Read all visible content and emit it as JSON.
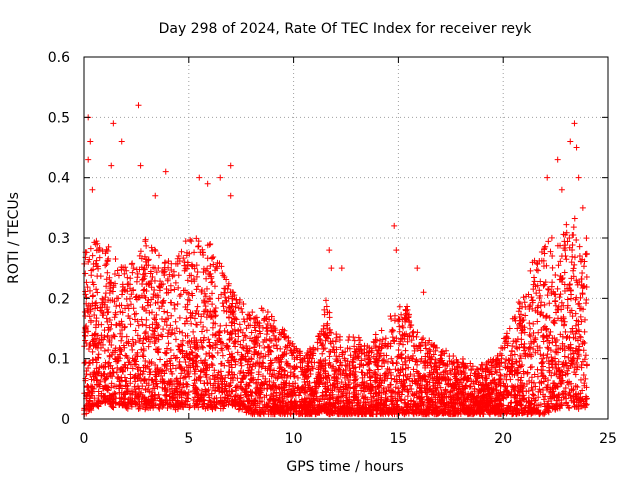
{
  "chart_data": {
    "type": "scatter",
    "title": "Day 298 of 2024, Rate Of TEC Index for receiver reyk",
    "xlabel": "GPS time / hours",
    "ylabel": "ROTI / TECUs",
    "xlim": [
      0,
      25
    ],
    "ylim": [
      0,
      0.6
    ],
    "x_ticks": [
      "0",
      "5",
      "10",
      "15",
      "20",
      "25"
    ],
    "y_ticks": [
      "0",
      "0.1",
      "0.2",
      "0.3",
      "0.4",
      "0.5",
      "0.6"
    ],
    "grid": true,
    "legend": "none",
    "marker": "plus",
    "series_color": "#ff0000",
    "envelope": {
      "hours": [
        0,
        0.5,
        1,
        1.5,
        2,
        2.5,
        3,
        3.5,
        4,
        4.5,
        5,
        5.5,
        6,
        6.5,
        7,
        7.5,
        8,
        8.5,
        9,
        9.5,
        10,
        10.5,
        11,
        11.5,
        12,
        12.5,
        13,
        13.5,
        14,
        14.5,
        15,
        15.5,
        16,
        16.5,
        17,
        17.5,
        18,
        18.5,
        19,
        19.5,
        20,
        20.5,
        21,
        21.5,
        22,
        22.5,
        23,
        23.5,
        24
      ],
      "typical_max": [
        0.29,
        0.3,
        0.3,
        0.27,
        0.25,
        0.28,
        0.3,
        0.28,
        0.26,
        0.29,
        0.3,
        0.3,
        0.29,
        0.27,
        0.22,
        0.2,
        0.18,
        0.19,
        0.17,
        0.15,
        0.13,
        0.11,
        0.12,
        0.2,
        0.15,
        0.13,
        0.14,
        0.12,
        0.15,
        0.16,
        0.2,
        0.18,
        0.14,
        0.13,
        0.12,
        0.11,
        0.1,
        0.09,
        0.09,
        0.1,
        0.13,
        0.17,
        0.22,
        0.27,
        0.3,
        0.3,
        0.32,
        0.33,
        0.3
      ],
      "typical_min": [
        0.01,
        0.02,
        0.03,
        0.02,
        0.02,
        0.02,
        0.02,
        0.02,
        0.02,
        0.02,
        0.02,
        0.02,
        0.02,
        0.02,
        0.02,
        0.02,
        0.01,
        0.01,
        0.01,
        0.01,
        0.01,
        0.01,
        0.01,
        0.01,
        0.01,
        0.01,
        0.01,
        0.01,
        0.01,
        0.01,
        0.01,
        0.01,
        0.01,
        0.01,
        0.01,
        0.01,
        0.01,
        0.01,
        0.01,
        0.01,
        0.01,
        0.01,
        0.01,
        0.01,
        0.01,
        0.02,
        0.02,
        0.02,
        0.02
      ]
    },
    "highlight_points": [
      {
        "x": 0.2,
        "y": 0.5
      },
      {
        "x": 0.3,
        "y": 0.46
      },
      {
        "x": 0.2,
        "y": 0.43
      },
      {
        "x": 0.4,
        "y": 0.38
      },
      {
        "x": 1.4,
        "y": 0.49
      },
      {
        "x": 1.8,
        "y": 0.46
      },
      {
        "x": 1.3,
        "y": 0.42
      },
      {
        "x": 2.6,
        "y": 0.52
      },
      {
        "x": 2.7,
        "y": 0.42
      },
      {
        "x": 3.4,
        "y": 0.37
      },
      {
        "x": 3.9,
        "y": 0.41
      },
      {
        "x": 5.5,
        "y": 0.4
      },
      {
        "x": 5.9,
        "y": 0.39
      },
      {
        "x": 6.5,
        "y": 0.4
      },
      {
        "x": 7.0,
        "y": 0.42
      },
      {
        "x": 7.0,
        "y": 0.37
      },
      {
        "x": 11.7,
        "y": 0.28
      },
      {
        "x": 11.8,
        "y": 0.25
      },
      {
        "x": 12.3,
        "y": 0.25
      },
      {
        "x": 14.8,
        "y": 0.32
      },
      {
        "x": 14.9,
        "y": 0.28
      },
      {
        "x": 15.9,
        "y": 0.25
      },
      {
        "x": 16.2,
        "y": 0.21
      },
      {
        "x": 22.1,
        "y": 0.4
      },
      {
        "x": 22.6,
        "y": 0.43
      },
      {
        "x": 22.8,
        "y": 0.38
      },
      {
        "x": 23.2,
        "y": 0.46
      },
      {
        "x": 23.4,
        "y": 0.49
      },
      {
        "x": 23.5,
        "y": 0.45
      },
      {
        "x": 23.6,
        "y": 0.4
      },
      {
        "x": 23.8,
        "y": 0.35
      }
    ]
  }
}
